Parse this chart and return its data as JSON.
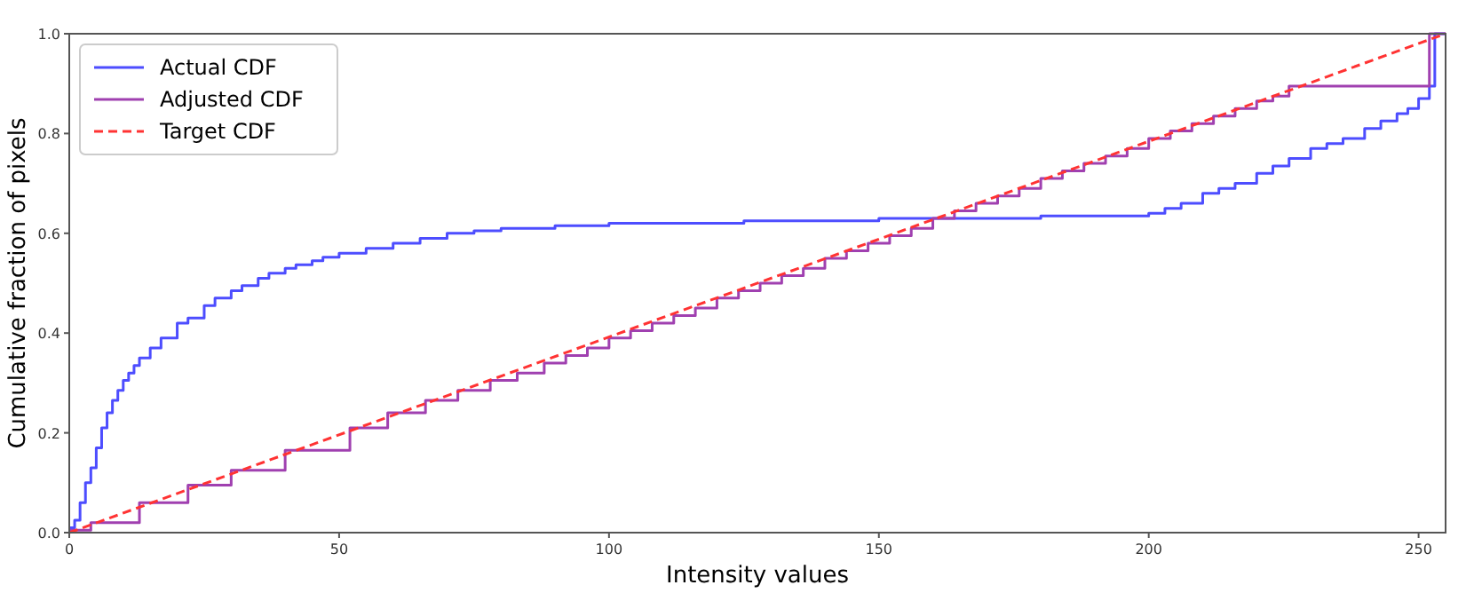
{
  "chart_data": {
    "type": "step",
    "xlabel": "Intensity values",
    "ylabel": "Cumulative fraction of pixels",
    "xlim": [
      0,
      255
    ],
    "xticks": [
      0,
      50,
      100,
      150,
      200,
      250
    ],
    "ylim": [
      0,
      1
    ],
    "yticks": [
      {
        "value": 0,
        "label": "0.0"
      },
      0.2,
      0.4,
      0.6,
      0.8,
      {
        "value": 1,
        "label": "1.0"
      }
    ],
    "legend": "top left",
    "grid": false,
    "series": [
      {
        "name": "Actual CDF",
        "color": "#4d4dff",
        "x": [
          0,
          1,
          2,
          3,
          4,
          5,
          6,
          7,
          8,
          9,
          10,
          11,
          12,
          13,
          15,
          17,
          20,
          22,
          25,
          27,
          30,
          32,
          35,
          37,
          40,
          42,
          45,
          47,
          50,
          55,
          60,
          65,
          70,
          75,
          80,
          90,
          100,
          125,
          150,
          180,
          200,
          203,
          206,
          210,
          213,
          216,
          220,
          223,
          226,
          230,
          233,
          236,
          240,
          243,
          246,
          248,
          250,
          252,
          253,
          255
        ],
        "values": [
          0.01,
          0.025,
          0.06,
          0.1,
          0.13,
          0.17,
          0.21,
          0.24,
          0.265,
          0.285,
          0.305,
          0.32,
          0.335,
          0.35,
          0.37,
          0.39,
          0.42,
          0.43,
          0.455,
          0.47,
          0.485,
          0.495,
          0.51,
          0.52,
          0.53,
          0.537,
          0.545,
          0.552,
          0.56,
          0.57,
          0.58,
          0.59,
          0.6,
          0.605,
          0.61,
          0.615,
          0.62,
          0.625,
          0.63,
          0.635,
          0.64,
          0.65,
          0.66,
          0.68,
          0.69,
          0.7,
          0.72,
          0.735,
          0.75,
          0.77,
          0.78,
          0.79,
          0.81,
          0.825,
          0.84,
          0.85,
          0.87,
          0.895,
          1.0,
          1.0
        ]
      },
      {
        "name": "Adjusted CDF",
        "color": "#a040b0",
        "x": [
          0,
          4,
          13,
          22,
          30,
          40,
          52,
          59,
          66,
          72,
          78,
          83,
          88,
          92,
          96,
          100,
          104,
          108,
          112,
          116,
          120,
          124,
          128,
          132,
          136,
          140,
          144,
          148,
          152,
          156,
          160,
          164,
          168,
          172,
          176,
          180,
          184,
          188,
          192,
          196,
          200,
          204,
          208,
          212,
          216,
          220,
          223,
          226,
          252,
          255
        ],
        "values": [
          0.005,
          0.02,
          0.06,
          0.095,
          0.125,
          0.165,
          0.21,
          0.24,
          0.265,
          0.285,
          0.305,
          0.32,
          0.34,
          0.355,
          0.37,
          0.39,
          0.405,
          0.42,
          0.435,
          0.45,
          0.47,
          0.485,
          0.5,
          0.515,
          0.53,
          0.55,
          0.565,
          0.58,
          0.595,
          0.61,
          0.63,
          0.645,
          0.66,
          0.675,
          0.69,
          0.71,
          0.725,
          0.74,
          0.755,
          0.77,
          0.79,
          0.805,
          0.82,
          0.835,
          0.85,
          0.865,
          0.875,
          0.895,
          1.0,
          1.0
        ]
      },
      {
        "name": "Target CDF",
        "color": "#ff3333",
        "type": "line",
        "line_style": "dashed",
        "x": [
          0,
          255
        ],
        "values": [
          0,
          1
        ]
      }
    ]
  }
}
